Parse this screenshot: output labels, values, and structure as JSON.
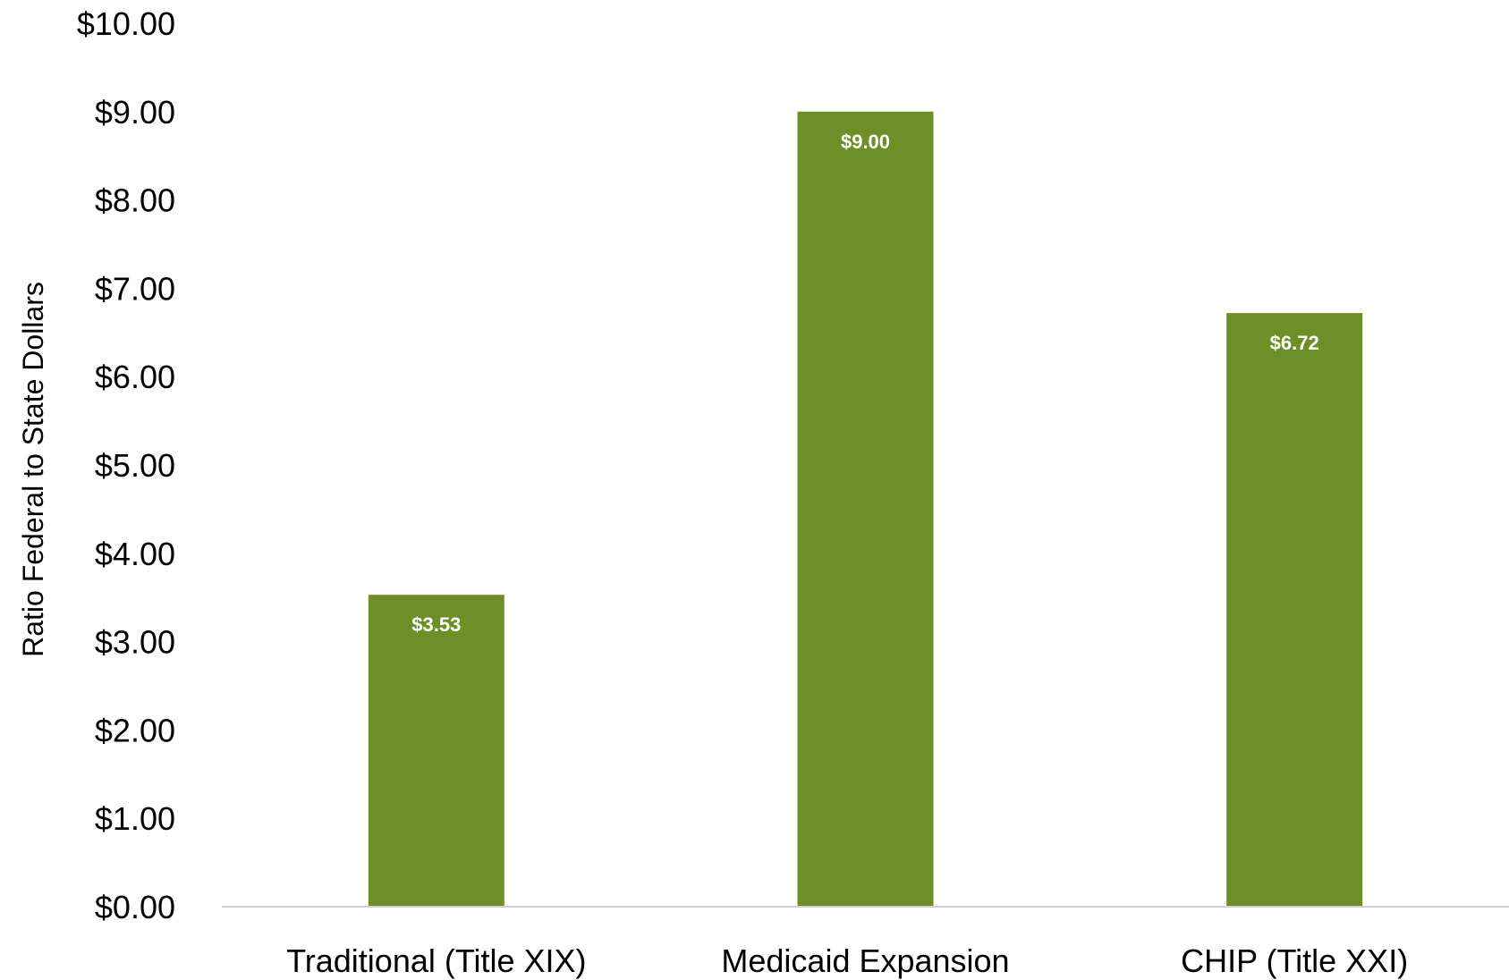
{
  "chart_data": {
    "type": "bar",
    "categories": [
      "Traditional (Title XIX)",
      "Medicaid Expansion",
      "CHIP (Title XXI)"
    ],
    "values": [
      3.53,
      9.0,
      6.72
    ],
    "data_labels": [
      "$3.53",
      "$9.00",
      "$6.72"
    ],
    "title": "",
    "xlabel": "",
    "ylabel": "Ratio Federal to State Dollars",
    "ylim": [
      0,
      10
    ],
    "y_ticks": [
      0,
      1,
      2,
      3,
      4,
      5,
      6,
      7,
      8,
      9,
      10
    ],
    "y_tick_labels": [
      "$0.00",
      "$1.00",
      "$2.00",
      "$3.00",
      "$4.00",
      "$5.00",
      "$6.00",
      "$7.00",
      "$8.00",
      "$9.00",
      "$10.00"
    ],
    "grid": false,
    "legend": "none",
    "bar_color": "#6e8f27",
    "axis_color": "#d0d0d0"
  }
}
